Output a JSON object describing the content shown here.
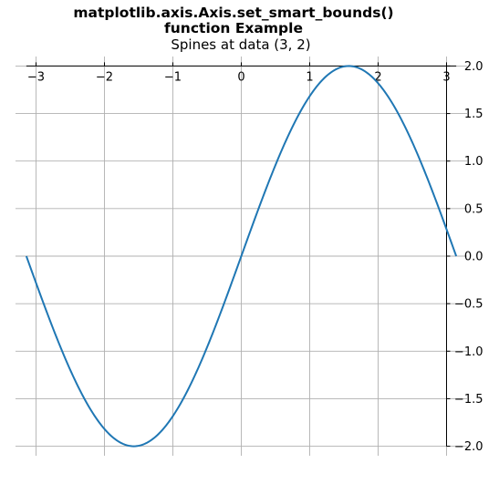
{
  "chart_data": {
    "type": "line",
    "title_lines": [
      "matplotlib.axis.Axis.set_smart_bounds()",
      "function Example"
    ],
    "subtitle": "Spines at data (3, 2)",
    "xlabel": "",
    "ylabel": "",
    "xlim": [
      -3.3,
      3.3
    ],
    "ylim": [
      -2.1,
      2.1
    ],
    "x_spine_at": 2,
    "y_spine_at": 3,
    "x_spine_range": [
      -3.14159,
      3.14159
    ],
    "y_spine_range": [
      -2,
      2
    ],
    "grid": true,
    "legend": "none",
    "x_ticks": [
      -3,
      -2,
      -1,
      0,
      1,
      2,
      3
    ],
    "x_tick_labels": [
      "−3",
      "−2",
      "−1",
      "0",
      "1",
      "2",
      "3"
    ],
    "y_ticks": [
      2.0,
      1.5,
      1.0,
      0.5,
      0.0,
      -0.5,
      -1.0,
      -1.5,
      -2.0
    ],
    "y_tick_labels": [
      "2.0",
      "1.5",
      "1.0",
      "0.5",
      "0.0",
      "−0.5",
      "−1.0",
      "−1.5",
      "−2.0"
    ],
    "series": [
      {
        "function": "2*sin(x)",
        "x_range": [
          -3.14159,
          3.14159
        ],
        "color": "#1f77b4",
        "key_points": [
          {
            "x": -3.14159,
            "y": 0
          },
          {
            "x": -1.5708,
            "y": -2
          },
          {
            "x": 0,
            "y": 0
          },
          {
            "x": 1.5708,
            "y": 2
          },
          {
            "x": 3.14159,
            "y": 0
          }
        ]
      }
    ]
  },
  "colors": {
    "line": "#1f77b4",
    "grid": "#b0b0b0",
    "spine": "#000000",
    "background": "#ffffff"
  }
}
